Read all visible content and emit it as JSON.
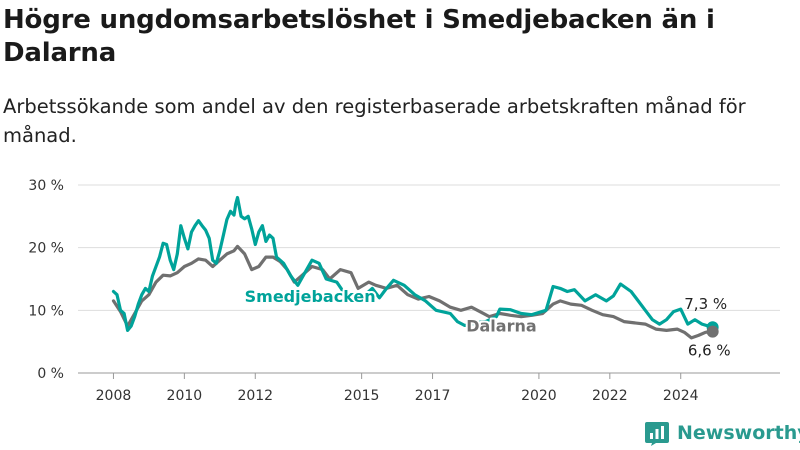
{
  "title": "Högre ungdomsarbetslöshet i Smedjebacken än i Dalarna",
  "subtitle": "Arbetssökande som andel av den registerbaserade arbetskraften månad för månad.",
  "brand": {
    "name": "Newsworthy",
    "icon": "newsworthy-logo-icon"
  },
  "colors": {
    "smedjebacken": "#00a39a",
    "dalarna": "#707070",
    "grid": "#dddddd"
  },
  "chart_data": {
    "type": "line",
    "title": "Högre ungdomsarbetslöshet i Smedjebacken än i Dalarna",
    "subtitle": "Arbetssökande som andel av den registerbaserade arbetskraften månad för månad.",
    "y_ticks": [
      0,
      10,
      20,
      30
    ],
    "y_tick_labels": [
      "0 %",
      "10 %",
      "20 %",
      "30 %"
    ],
    "x_ticks": [
      2008,
      2010,
      2012,
      2015,
      2017,
      2020,
      2022,
      2024
    ],
    "x_tick_labels": [
      "2008",
      "2010",
      "2012",
      "2015",
      "2017",
      "2020",
      "2022",
      "2024"
    ],
    "xlim": [
      2007.0,
      2026.8
    ],
    "ylim": [
      0,
      30
    ],
    "grid": "horizontal",
    "series": [
      {
        "name": "Smedjebacken",
        "color": "#00a39a",
        "end_label": "7,3 %",
        "points": [
          [
            2008.0,
            13.0
          ],
          [
            2008.1,
            12.5
          ],
          [
            2008.2,
            10.0
          ],
          [
            2008.3,
            9.5
          ],
          [
            2008.4,
            6.8
          ],
          [
            2008.5,
            7.5
          ],
          [
            2008.6,
            9.0
          ],
          [
            2008.7,
            11.0
          ],
          [
            2008.8,
            12.5
          ],
          [
            2008.9,
            13.5
          ],
          [
            2009.0,
            13.0
          ],
          [
            2009.1,
            15.5
          ],
          [
            2009.2,
            17.0
          ],
          [
            2009.3,
            18.5
          ],
          [
            2009.4,
            20.7
          ],
          [
            2009.5,
            20.5
          ],
          [
            2009.6,
            18.0
          ],
          [
            2009.7,
            16.5
          ],
          [
            2009.8,
            19.0
          ],
          [
            2009.9,
            23.5
          ],
          [
            2010.0,
            21.5
          ],
          [
            2010.1,
            19.8
          ],
          [
            2010.2,
            22.5
          ],
          [
            2010.3,
            23.5
          ],
          [
            2010.4,
            24.3
          ],
          [
            2010.5,
            23.5
          ],
          [
            2010.6,
            22.8
          ],
          [
            2010.7,
            21.5
          ],
          [
            2010.8,
            18.0
          ],
          [
            2010.9,
            17.5
          ],
          [
            2011.0,
            19.5
          ],
          [
            2011.1,
            22.0
          ],
          [
            2011.2,
            24.5
          ],
          [
            2011.3,
            25.8
          ],
          [
            2011.4,
            25.2
          ],
          [
            2011.45,
            27.0
          ],
          [
            2011.5,
            28.0
          ],
          [
            2011.6,
            25.0
          ],
          [
            2011.7,
            24.6
          ],
          [
            2011.8,
            25.0
          ],
          [
            2011.9,
            23.0
          ],
          [
            2012.0,
            20.5
          ],
          [
            2012.1,
            22.5
          ],
          [
            2012.2,
            23.5
          ],
          [
            2012.3,
            21.0
          ],
          [
            2012.4,
            22.0
          ],
          [
            2012.5,
            21.5
          ],
          [
            2012.6,
            18.5
          ],
          [
            2012.7,
            18.0
          ],
          [
            2012.8,
            17.5
          ],
          [
            2013.0,
            15.5
          ],
          [
            2013.2,
            14.0
          ],
          [
            2013.4,
            16.0
          ],
          [
            2013.6,
            18.0
          ],
          [
            2013.8,
            17.5
          ],
          [
            2014.0,
            15.0
          ],
          [
            2014.3,
            14.5
          ],
          [
            2014.6,
            12.0
          ],
          [
            2014.9,
            11.5
          ],
          [
            2015.1,
            12.5
          ],
          [
            2015.3,
            13.5
          ],
          [
            2015.5,
            12.0
          ],
          [
            2015.7,
            13.5
          ],
          [
            2015.9,
            14.8
          ],
          [
            2016.2,
            14.0
          ],
          [
            2016.5,
            12.5
          ],
          [
            2016.8,
            11.5
          ],
          [
            2017.1,
            10.0
          ],
          [
            2017.5,
            9.5
          ],
          [
            2017.7,
            8.2
          ],
          [
            2017.9,
            7.6
          ],
          [
            2018.0,
            7.6
          ],
          [
            2018.2,
            8.0
          ],
          [
            2018.5,
            8.2
          ],
          [
            2018.8,
            9.0
          ],
          [
            2018.9,
            10.2
          ],
          [
            2019.2,
            10.1
          ],
          [
            2019.5,
            9.5
          ],
          [
            2019.8,
            9.3
          ],
          [
            2020.2,
            10.0
          ],
          [
            2020.4,
            13.8
          ],
          [
            2020.6,
            13.5
          ],
          [
            2020.8,
            13.0
          ],
          [
            2021.0,
            13.3
          ],
          [
            2021.3,
            11.5
          ],
          [
            2021.6,
            12.5
          ],
          [
            2021.9,
            11.5
          ],
          [
            2022.1,
            12.3
          ],
          [
            2022.3,
            14.2
          ],
          [
            2022.6,
            13.0
          ],
          [
            2022.8,
            11.5
          ],
          [
            2023.0,
            10.0
          ],
          [
            2023.2,
            8.5
          ],
          [
            2023.4,
            7.8
          ],
          [
            2023.6,
            8.5
          ],
          [
            2023.8,
            9.8
          ],
          [
            2024.0,
            10.2
          ],
          [
            2024.2,
            7.8
          ],
          [
            2024.4,
            8.5
          ],
          [
            2024.6,
            7.8
          ],
          [
            2024.9,
            7.3
          ]
        ]
      },
      {
        "name": "Dalarna",
        "color": "#707070",
        "end_label": "6,6 %",
        "points": [
          [
            2008.0,
            11.5
          ],
          [
            2008.2,
            9.8
          ],
          [
            2008.4,
            7.5
          ],
          [
            2008.6,
            9.5
          ],
          [
            2008.8,
            11.5
          ],
          [
            2009.0,
            12.5
          ],
          [
            2009.2,
            14.5
          ],
          [
            2009.4,
            15.6
          ],
          [
            2009.6,
            15.5
          ],
          [
            2009.8,
            16.0
          ],
          [
            2010.0,
            17.0
          ],
          [
            2010.2,
            17.5
          ],
          [
            2010.4,
            18.2
          ],
          [
            2010.6,
            18.0
          ],
          [
            2010.8,
            17.0
          ],
          [
            2011.0,
            18.0
          ],
          [
            2011.2,
            19.0
          ],
          [
            2011.4,
            19.5
          ],
          [
            2011.5,
            20.2
          ],
          [
            2011.7,
            19.0
          ],
          [
            2011.9,
            16.5
          ],
          [
            2012.1,
            17.0
          ],
          [
            2012.3,
            18.5
          ],
          [
            2012.5,
            18.5
          ],
          [
            2012.7,
            17.8
          ],
          [
            2012.9,
            16.5
          ],
          [
            2013.1,
            14.5
          ],
          [
            2013.3,
            15.5
          ],
          [
            2013.6,
            17.0
          ],
          [
            2013.9,
            16.5
          ],
          [
            2014.1,
            15.0
          ],
          [
            2014.4,
            16.5
          ],
          [
            2014.7,
            16.0
          ],
          [
            2014.9,
            13.5
          ],
          [
            2015.2,
            14.5
          ],
          [
            2015.4,
            14.0
          ],
          [
            2015.7,
            13.5
          ],
          [
            2016.0,
            14.0
          ],
          [
            2016.3,
            12.5
          ],
          [
            2016.6,
            11.8
          ],
          [
            2016.9,
            12.2
          ],
          [
            2017.2,
            11.5
          ],
          [
            2017.5,
            10.5
          ],
          [
            2017.8,
            10.0
          ],
          [
            2018.1,
            10.5
          ],
          [
            2018.4,
            9.6
          ],
          [
            2018.6,
            9.0
          ],
          [
            2018.9,
            9.5
          ],
          [
            2019.2,
            9.2
          ],
          [
            2019.5,
            9.0
          ],
          [
            2019.8,
            9.2
          ],
          [
            2020.1,
            9.5
          ],
          [
            2020.4,
            11.0
          ],
          [
            2020.6,
            11.5
          ],
          [
            2020.9,
            11.0
          ],
          [
            2021.2,
            10.8
          ],
          [
            2021.5,
            10.0
          ],
          [
            2021.8,
            9.3
          ],
          [
            2022.1,
            9.0
          ],
          [
            2022.4,
            8.2
          ],
          [
            2022.7,
            8.0
          ],
          [
            2023.0,
            7.8
          ],
          [
            2023.3,
            7.0
          ],
          [
            2023.6,
            6.8
          ],
          [
            2023.9,
            7.0
          ],
          [
            2024.1,
            6.5
          ],
          [
            2024.3,
            5.6
          ],
          [
            2024.5,
            6.0
          ],
          [
            2024.7,
            6.5
          ],
          [
            2024.9,
            6.6
          ]
        ]
      }
    ]
  }
}
